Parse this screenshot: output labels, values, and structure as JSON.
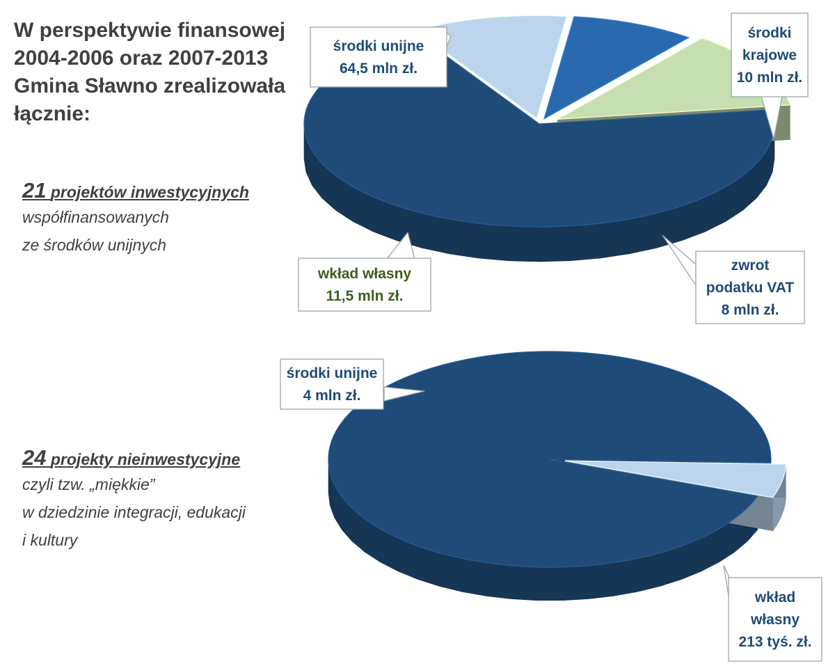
{
  "heading": {
    "lines": [
      "W perspektywie finansowej",
      "2004-2006 oraz 2007-2013",
      "Gmina Sławno zrealizowała",
      "łącznie:"
    ]
  },
  "investment": {
    "count": "21",
    "label": "projektów inwestycyjnych",
    "lines": [
      "współfinansowanych",
      "ze środków unijnych"
    ]
  },
  "soft": {
    "count": "24",
    "label": "projekty nieinwestycyjne",
    "lines": [
      "czyli tzw. „miękkie”",
      "w dziedzinie integracji, edukacji",
      "i kultury"
    ]
  },
  "chart_data": [
    {
      "type": "pie",
      "unit": "mln zł",
      "slices": [
        {
          "label": "środki unijne",
          "value": 64.5,
          "value_text": "64,5 mln zł.",
          "color": "#1f4b78"
        },
        {
          "label": "środki krajowe",
          "value": 10,
          "value_text": "10 mln zł.",
          "color": "#bcd5ec"
        },
        {
          "label": "zwrot podatku VAT",
          "value": 8,
          "value_text": "8 mln zł.",
          "color": "#2a69ae"
        },
        {
          "label": "wkład własny",
          "value": 11.5,
          "value_text": "11,5 mln zł.",
          "color": "#c6dfb0",
          "text_color": "#3d5f1e"
        }
      ]
    },
    {
      "type": "pie",
      "unit": "zł",
      "slices": [
        {
          "label": "środki unijne",
          "value": 4000000,
          "value_text": "4 mln zł.",
          "color": "#1f4b78"
        },
        {
          "label": "wkład własny",
          "value": 213000,
          "value_text": "213 tyś. zł.",
          "color": "#bcd5ec"
        }
      ]
    }
  ]
}
